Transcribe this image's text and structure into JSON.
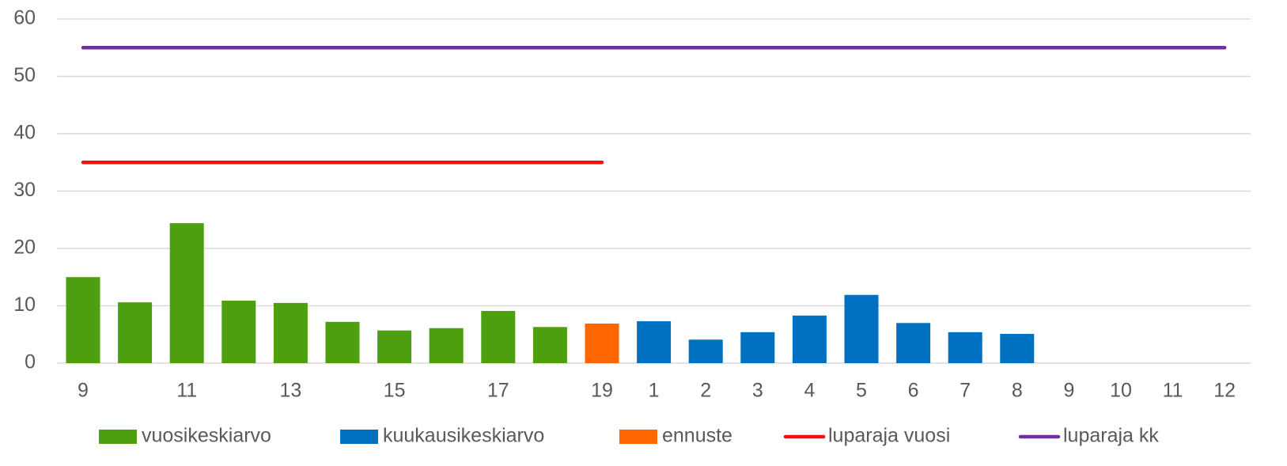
{
  "chart_data": {
    "type": "bar",
    "categories": [
      "9",
      null,
      "11",
      null,
      "13",
      null,
      "15",
      null,
      "17",
      null,
      "19",
      "1",
      "2",
      "3",
      "4",
      "5",
      "6",
      "7",
      "8",
      "9",
      "10",
      "11",
      "12"
    ],
    "series": [
      {
        "name": "vuosikeskiarvo",
        "type": "bar",
        "color": "#4e9f0f",
        "values": [
          15,
          10.6,
          24.4,
          10.9,
          10.5,
          7.2,
          5.7,
          6.1,
          9.1,
          6.3,
          null,
          null,
          null,
          null,
          null,
          null,
          null,
          null,
          null,
          null,
          null,
          null,
          null
        ]
      },
      {
        "name": "kuukausikeskiarvo",
        "type": "bar",
        "color": "#0070c0",
        "values": [
          null,
          null,
          null,
          null,
          null,
          null,
          null,
          null,
          null,
          null,
          null,
          7.3,
          4.1,
          5.4,
          8.3,
          11.9,
          7.0,
          5.4,
          5.1,
          null,
          null,
          null,
          null
        ]
      },
      {
        "name": "ennuste",
        "type": "bar",
        "color": "#ff6600",
        "values": [
          null,
          null,
          null,
          null,
          null,
          null,
          null,
          null,
          null,
          null,
          6.9,
          null,
          null,
          null,
          null,
          null,
          null,
          null,
          null,
          null,
          null,
          null,
          null
        ]
      },
      {
        "name": "luparaja vuosi",
        "type": "line",
        "color": "#ee1111",
        "values": [
          35,
          35,
          35,
          35,
          35,
          35,
          35,
          35,
          35,
          35,
          35,
          null,
          null,
          null,
          null,
          null,
          null,
          null,
          null,
          null,
          null,
          null,
          null
        ]
      },
      {
        "name": "luparaja kk",
        "type": "line",
        "color": "#7030a0",
        "values": [
          55,
          55,
          55,
          55,
          55,
          55,
          55,
          55,
          55,
          55,
          55,
          55,
          55,
          55,
          55,
          55,
          55,
          55,
          55,
          55,
          55,
          55,
          55
        ]
      }
    ],
    "ylim": [
      0,
      60
    ],
    "yticks": [
      0,
      10,
      20,
      30,
      40,
      50,
      60
    ],
    "grid": true,
    "legend": "bottom"
  }
}
